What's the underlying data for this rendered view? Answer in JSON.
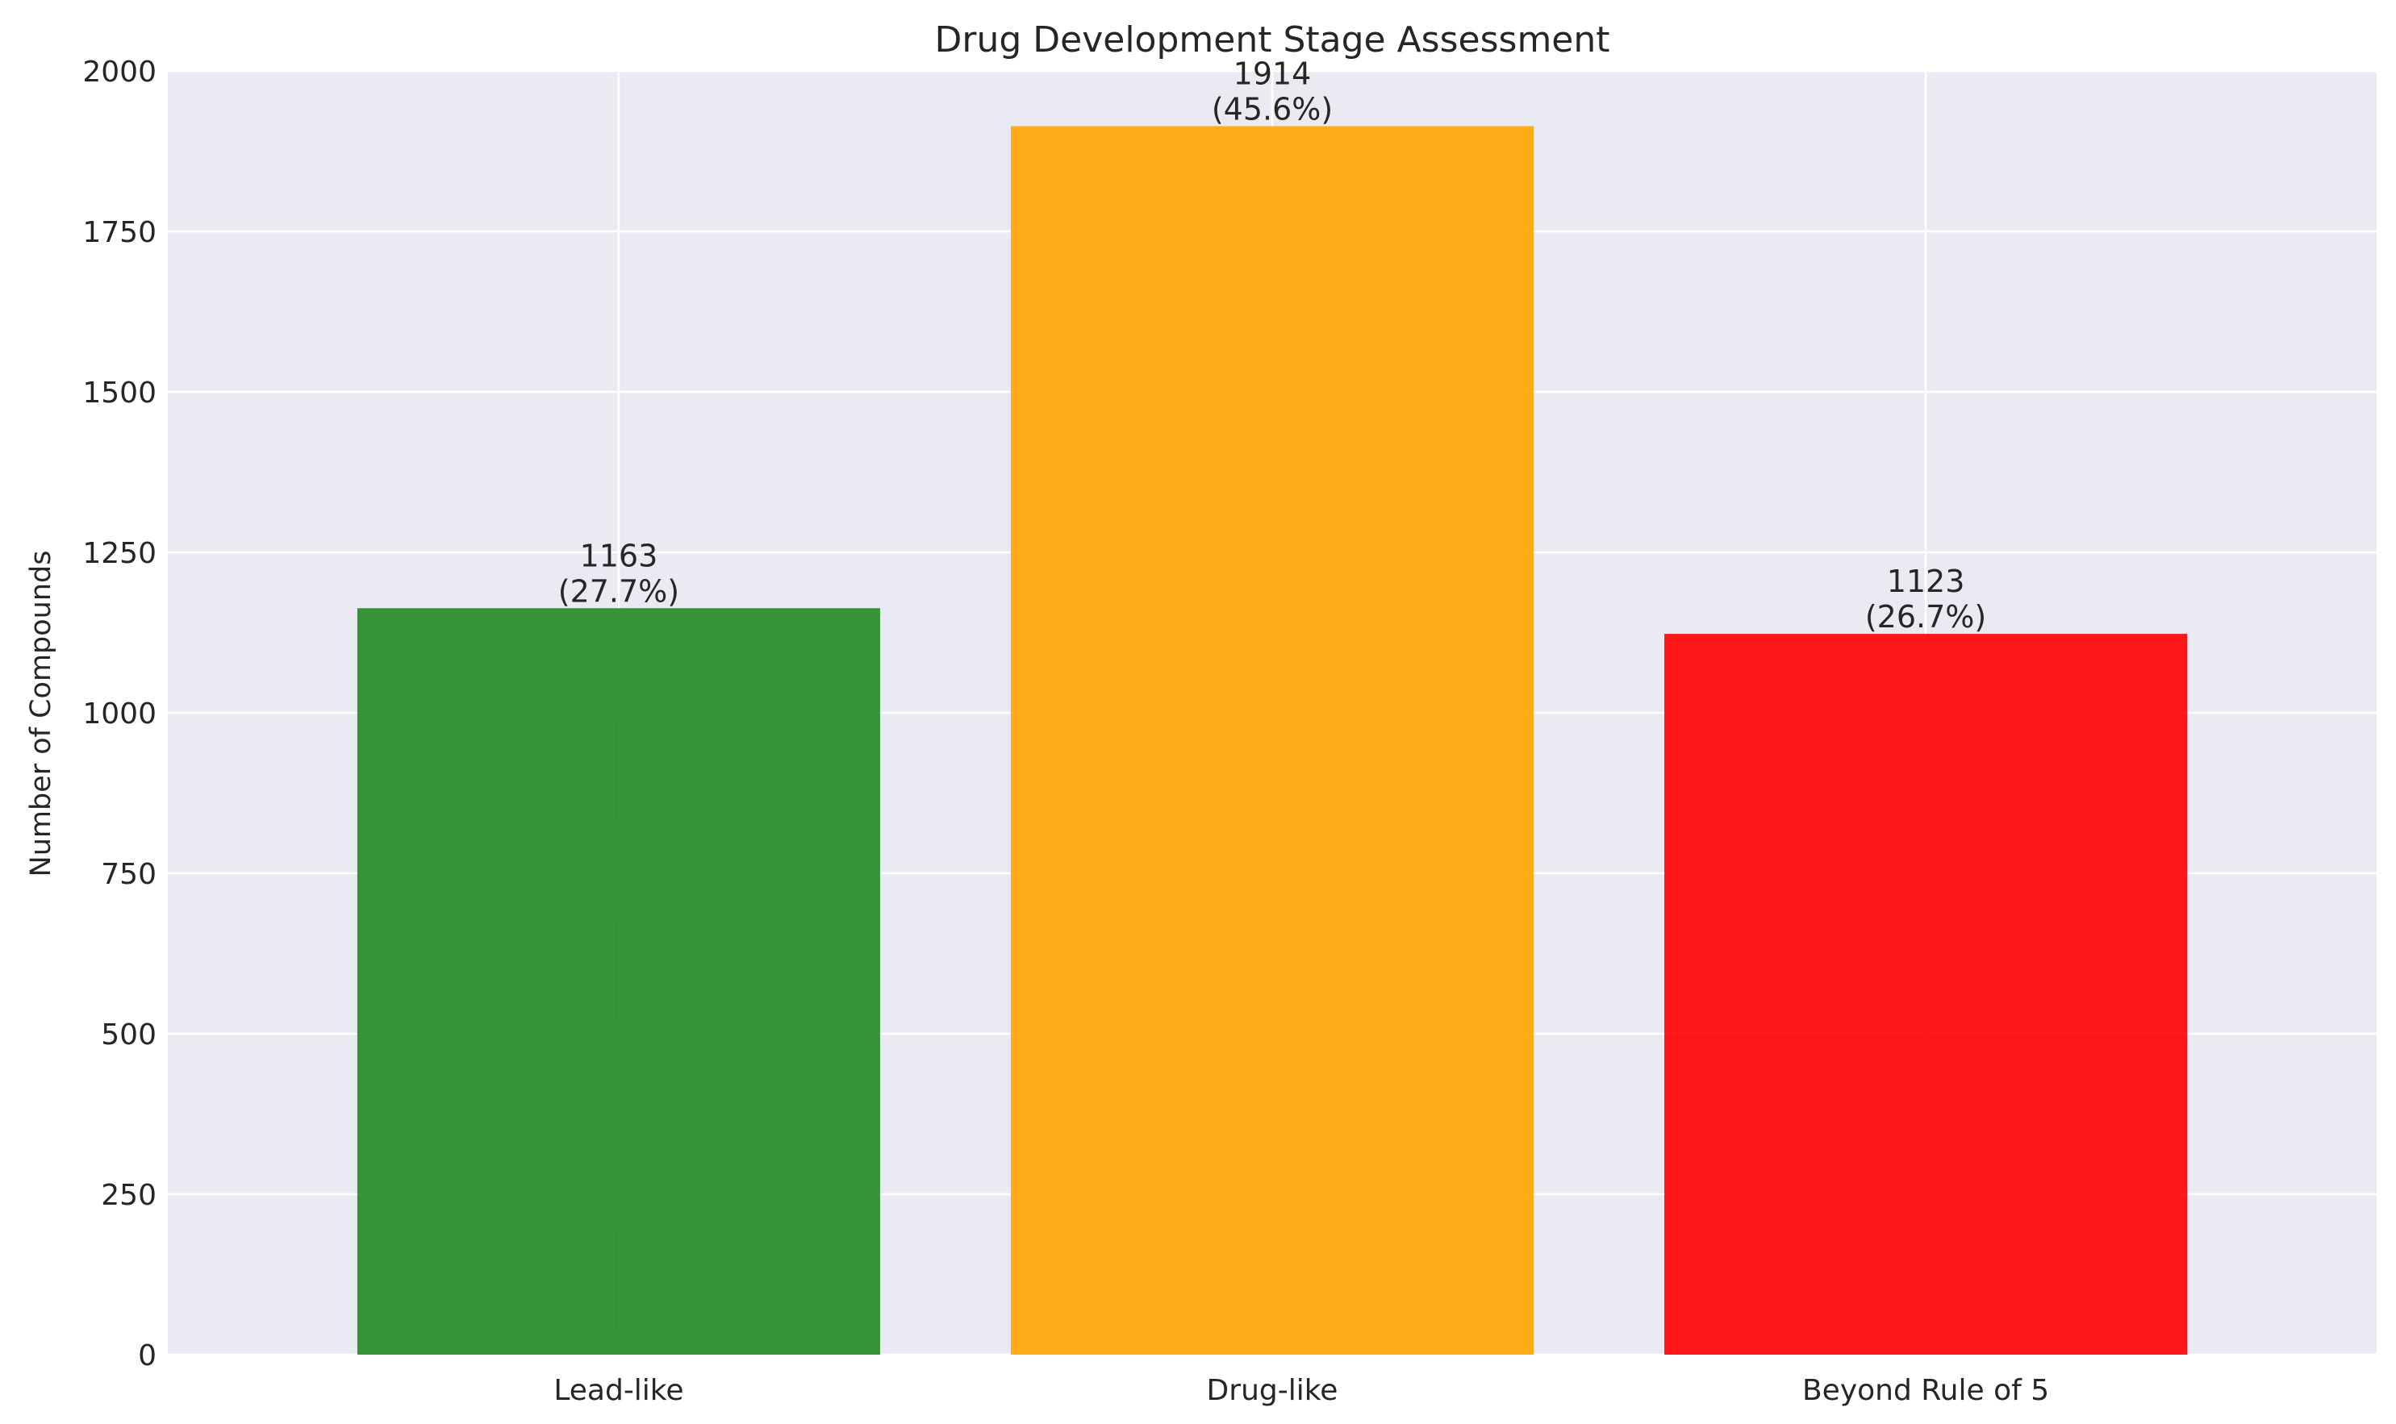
{
  "chart_data": {
    "type": "bar",
    "title": "Drug Development Stage Assessment",
    "xlabel": "",
    "ylabel": "Number of Compounds",
    "categories": [
      "Lead-like",
      "Drug-like",
      "Beyond Rule of 5"
    ],
    "values": [
      1163,
      1914,
      1123
    ],
    "value_labels": [
      "1163",
      "1914",
      "1123"
    ],
    "percent_labels": [
      "(27.7%)",
      "(45.6%)",
      "(26.7%)"
    ],
    "colors": [
      "#228B22",
      "#FFA500",
      "#FF0000"
    ],
    "bar_opacity": 0.9,
    "ylim": [
      0,
      2000
    ],
    "yticks": [
      0,
      250,
      500,
      750,
      1000,
      1250,
      1500,
      1750,
      2000
    ],
    "grid": true,
    "plot_background": "#EAEAF2",
    "grid_color": "#FFFFFF"
  }
}
